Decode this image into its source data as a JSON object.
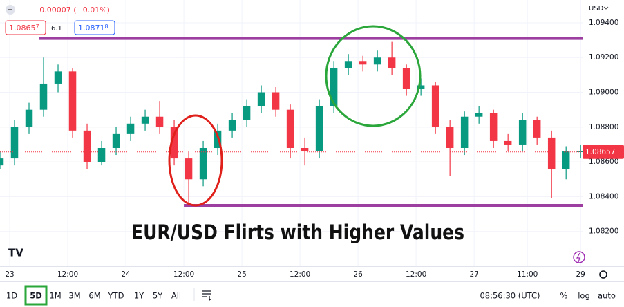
{
  "header": {
    "change": "−0.00007 (−0.01%)",
    "bid": "1.0865",
    "bid_sup": "7",
    "spread": "6.1",
    "ask": "1.0871",
    "ask_sup": "8"
  },
  "chart_data": {
    "type": "candlestick",
    "title": "EUR/USD Flirts with Higher Values",
    "currency": "USD",
    "x": [
      -2,
      1,
      4,
      7,
      10,
      13,
      16,
      19,
      22,
      25,
      28,
      31,
      34,
      37,
      40,
      43,
      46,
      49,
      52,
      55,
      58,
      61,
      64,
      67,
      70,
      73,
      76,
      79,
      82,
      85,
      88,
      91,
      94,
      97,
      100,
      103,
      106,
      109,
      112,
      115,
      118
    ],
    "open": [
      1.0858,
      1.0862,
      1.088,
      1.089,
      1.0905,
      1.0912,
      1.0878,
      1.086,
      1.0868,
      1.0876,
      1.0882,
      1.0886,
      1.088,
      1.0862,
      1.085,
      1.0868,
      1.0878,
      1.0884,
      1.0892,
      1.09,
      1.089,
      1.0868,
      1.0866,
      1.0892,
      1.0914,
      1.0918,
      1.0916,
      1.092,
      1.0914,
      1.0902,
      1.0904,
      1.088,
      1.0868,
      1.0886,
      1.0888,
      1.0872,
      1.087,
      1.0884,
      1.0874,
      1.0856,
      1.0866
    ],
    "high": [
      1.0866,
      1.0884,
      1.0894,
      1.092,
      1.0916,
      1.0914,
      1.0882,
      1.0872,
      1.088,
      1.0886,
      1.089,
      1.0895,
      1.0884,
      1.0866,
      1.0872,
      1.0882,
      1.0888,
      1.0896,
      1.0904,
      1.0903,
      1.0893,
      1.0874,
      1.0896,
      1.0918,
      1.0922,
      1.0921,
      1.0924,
      1.0929,
      1.0916,
      1.0908,
      1.0906,
      1.0884,
      1.0889,
      1.0892,
      1.089,
      1.0876,
      1.0888,
      1.0886,
      1.0878,
      1.0869,
      1.087
    ],
    "low": [
      1.0856,
      1.0858,
      1.0876,
      1.0886,
      1.09,
      1.0874,
      1.0856,
      1.0858,
      1.0864,
      1.0872,
      1.0878,
      1.0876,
      1.0858,
      1.0836,
      1.0846,
      1.0864,
      1.0874,
      1.088,
      1.0888,
      1.0886,
      1.0862,
      1.0858,
      1.0862,
      1.0888,
      1.091,
      1.0912,
      1.0912,
      1.091,
      1.0898,
      1.0898,
      1.0876,
      1.0852,
      1.0864,
      1.0882,
      1.0868,
      1.0866,
      1.0866,
      1.087,
      1.0839,
      1.085,
      1.0862
    ],
    "close": [
      1.0862,
      1.088,
      1.089,
      1.0905,
      1.0912,
      1.0878,
      1.086,
      1.0868,
      1.0876,
      1.0882,
      1.0886,
      1.088,
      1.0862,
      1.085,
      1.0868,
      1.0878,
      1.0884,
      1.0892,
      1.09,
      1.089,
      1.0868,
      1.0866,
      1.0892,
      1.0914,
      1.0918,
      1.0916,
      1.092,
      1.0914,
      1.0902,
      1.0904,
      1.088,
      1.0868,
      1.0886,
      1.0888,
      1.0872,
      1.087,
      1.0884,
      1.0874,
      1.0856,
      1.0866,
      1.0866
    ],
    "up_color": "#089981",
    "down_color": "#f23645",
    "xlim": [
      -2,
      118.4
    ],
    "xticks": [
      {
        "value": 0,
        "label": "23"
      },
      {
        "value": 12,
        "label": "12:00"
      },
      {
        "value": 24,
        "label": "24"
      },
      {
        "value": 36,
        "label": "12:00"
      },
      {
        "value": 48,
        "label": "25"
      },
      {
        "value": 60,
        "label": "12:00"
      },
      {
        "value": 72,
        "label": "26"
      },
      {
        "value": 84,
        "label": "12:00"
      },
      {
        "value": 96,
        "label": "27"
      },
      {
        "value": 107,
        "label": "11:00"
      },
      {
        "value": 118,
        "label": "29"
      }
    ],
    "ylim": [
      1.08,
      1.09531
    ],
    "yticks": [
      {
        "value": 1.094,
        "label": "1.09400"
      },
      {
        "value": 1.092,
        "label": "1.09200"
      },
      {
        "value": 1.09,
        "label": "1.09000"
      },
      {
        "value": 1.088,
        "label": "1.08800"
      },
      {
        "value": 1.086,
        "label": "1.08600"
      },
      {
        "value": 1.084,
        "label": "1.08400"
      },
      {
        "value": 1.082,
        "label": "1.08200"
      }
    ],
    "price_line": {
      "value": 1.08657,
      "color": "#f23645"
    },
    "levels": [
      {
        "value": 1.0931,
        "x_start": 6,
        "color": "#9c3fa0"
      },
      {
        "value": 1.0835,
        "x_start": 36,
        "color": "#9c3fa0"
      }
    ]
  },
  "toolbar": {
    "ranges": [
      "1D",
      "5D",
      "1M",
      "3M",
      "6M",
      "YTD",
      "1Y",
      "5Y",
      "All"
    ],
    "selected": 1,
    "time": "08:56:30 (UTC)",
    "options": [
      "%",
      "log",
      "auto"
    ]
  }
}
